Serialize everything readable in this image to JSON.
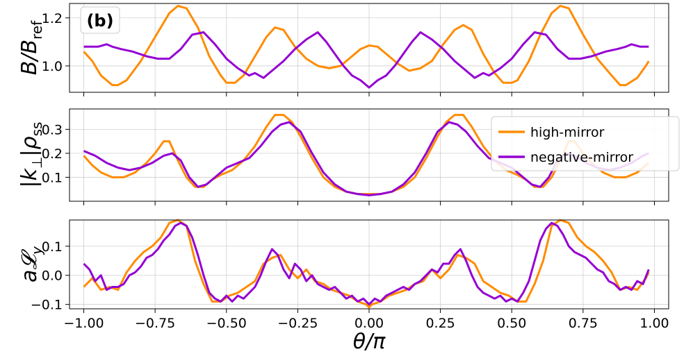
{
  "colors": {
    "high_mirror": "#ff8c00",
    "negative_mirror": "#9400d3"
  },
  "panel_tag": "(b)",
  "xlabel": "θ/π",
  "chart_data": [
    {
      "type": "line",
      "ylabel_main": "B/B",
      "ylabel_sub": "ref",
      "xlim": [
        -1.05,
        1.05
      ],
      "ylim": [
        0.89,
        1.26
      ],
      "xticks": [
        -1.0,
        -0.75,
        -0.5,
        -0.25,
        0.0,
        0.25,
        0.5,
        0.75,
        1.0
      ],
      "yticks": [
        1.0,
        1.2
      ],
      "ytick_labels": [
        "1.0",
        "1.2"
      ],
      "grid": true,
      "series": [
        {
          "name": "high-mirror",
          "color_key": "high_mirror",
          "x": [
            -1.0,
            -0.97,
            -0.94,
            -0.9,
            -0.88,
            -0.85,
            -0.8,
            -0.75,
            -0.7,
            -0.67,
            -0.64,
            -0.6,
            -0.56,
            -0.52,
            -0.5,
            -0.47,
            -0.44,
            -0.4,
            -0.36,
            -0.33,
            -0.3,
            -0.26,
            -0.22,
            -0.18,
            -0.14,
            -0.1,
            -0.06,
            -0.03,
            0.0,
            0.03,
            0.06,
            0.1,
            0.14,
            0.18,
            0.22,
            0.26,
            0.3,
            0.33,
            0.36,
            0.4,
            0.44,
            0.47,
            0.5,
            0.52,
            0.56,
            0.6,
            0.64,
            0.67,
            0.7,
            0.75,
            0.8,
            0.85,
            0.88,
            0.9,
            0.94,
            0.97,
            0.98
          ],
          "y": [
            1.06,
            1.02,
            0.96,
            0.92,
            0.92,
            0.94,
            1.02,
            1.12,
            1.22,
            1.25,
            1.24,
            1.16,
            1.04,
            0.96,
            0.93,
            0.93,
            0.96,
            1.04,
            1.12,
            1.16,
            1.15,
            1.08,
            1.03,
            1.0,
            0.99,
            1.0,
            1.04,
            1.07,
            1.085,
            1.08,
            1.05,
            1.01,
            0.98,
            0.99,
            1.02,
            1.09,
            1.15,
            1.17,
            1.15,
            1.05,
            0.97,
            0.93,
            0.93,
            0.94,
            1.02,
            1.13,
            1.22,
            1.25,
            1.24,
            1.13,
            1.03,
            0.96,
            0.92,
            0.92,
            0.95,
            1.0,
            1.02
          ]
        },
        {
          "name": "negative-mirror",
          "color_key": "negative_mirror",
          "x": [
            -1.0,
            -0.95,
            -0.92,
            -0.9,
            -0.87,
            -0.83,
            -0.78,
            -0.74,
            -0.7,
            -0.66,
            -0.62,
            -0.58,
            -0.54,
            -0.5,
            -0.46,
            -0.42,
            -0.4,
            -0.37,
            -0.34,
            -0.3,
            -0.26,
            -0.22,
            -0.18,
            -0.15,
            -0.12,
            -0.09,
            -0.06,
            -0.03,
            -0.01,
            0.0,
            0.01,
            0.03,
            0.06,
            0.09,
            0.12,
            0.15,
            0.18,
            0.22,
            0.26,
            0.3,
            0.34,
            0.37,
            0.4,
            0.42,
            0.46,
            0.5,
            0.54,
            0.58,
            0.62,
            0.66,
            0.7,
            0.74,
            0.78,
            0.83,
            0.87,
            0.9,
            0.92,
            0.95,
            0.98
          ],
          "y": [
            1.08,
            1.08,
            1.09,
            1.08,
            1.07,
            1.06,
            1.04,
            1.03,
            1.03,
            1.07,
            1.13,
            1.14,
            1.09,
            1.03,
            0.99,
            0.96,
            0.97,
            0.95,
            0.98,
            1.02,
            1.07,
            1.11,
            1.14,
            1.1,
            1.05,
            1.0,
            0.96,
            0.94,
            0.92,
            0.91,
            0.92,
            0.94,
            0.96,
            1.0,
            1.05,
            1.1,
            1.14,
            1.11,
            1.07,
            1.02,
            0.98,
            0.95,
            0.97,
            0.96,
            0.99,
            1.03,
            1.09,
            1.14,
            1.13,
            1.07,
            1.03,
            1.03,
            1.04,
            1.06,
            1.07,
            1.08,
            1.09,
            1.08,
            1.08
          ]
        }
      ]
    },
    {
      "type": "line",
      "ylabel_main": "|k",
      "ylabel_sub": "⊥",
      "ylabel_mid": "|ρ",
      "ylabel_sub2": "ss",
      "xlim": [
        -1.05,
        1.05
      ],
      "ylim": [
        0.0,
        0.385
      ],
      "xticks": [
        -1.0,
        -0.75,
        -0.5,
        -0.25,
        0.0,
        0.25,
        0.5,
        0.75,
        1.0
      ],
      "yticks": [
        0.1,
        0.2,
        0.3
      ],
      "ytick_labels": [
        "0.1",
        "0.2",
        "0.3"
      ],
      "grid": true,
      "legend": {
        "position": "top-right",
        "entries": [
          "high-mirror",
          "negative-mirror"
        ]
      },
      "series": [
        {
          "name": "high-mirror",
          "color_key": "high_mirror",
          "x": [
            -1.0,
            -0.97,
            -0.94,
            -0.9,
            -0.86,
            -0.82,
            -0.78,
            -0.75,
            -0.72,
            -0.7,
            -0.67,
            -0.64,
            -0.61,
            -0.58,
            -0.55,
            -0.52,
            -0.48,
            -0.44,
            -0.4,
            -0.36,
            -0.33,
            -0.3,
            -0.27,
            -0.24,
            -0.2,
            -0.16,
            -0.12,
            -0.08,
            -0.04,
            0.0,
            0.04,
            0.08,
            0.12,
            0.16,
            0.2,
            0.24,
            0.27,
            0.3,
            0.33,
            0.36,
            0.4,
            0.44,
            0.48,
            0.52,
            0.55,
            0.58,
            0.61,
            0.64,
            0.67,
            0.7,
            0.72,
            0.75,
            0.78,
            0.82,
            0.86,
            0.9,
            0.94,
            0.97,
            0.98
          ],
          "y": [
            0.19,
            0.15,
            0.12,
            0.1,
            0.1,
            0.12,
            0.16,
            0.2,
            0.25,
            0.25,
            0.17,
            0.1,
            0.06,
            0.06,
            0.09,
            0.11,
            0.13,
            0.17,
            0.23,
            0.31,
            0.36,
            0.36,
            0.33,
            0.27,
            0.18,
            0.1,
            0.06,
            0.04,
            0.03,
            0.03,
            0.03,
            0.04,
            0.06,
            0.1,
            0.18,
            0.27,
            0.33,
            0.36,
            0.36,
            0.31,
            0.23,
            0.17,
            0.13,
            0.11,
            0.09,
            0.06,
            0.06,
            0.1,
            0.17,
            0.25,
            0.25,
            0.2,
            0.16,
            0.12,
            0.1,
            0.1,
            0.12,
            0.15,
            0.16
          ]
        },
        {
          "name": "negative-mirror",
          "color_key": "negative_mirror",
          "x": [
            -1.0,
            -0.96,
            -0.92,
            -0.88,
            -0.84,
            -0.8,
            -0.76,
            -0.72,
            -0.69,
            -0.66,
            -0.63,
            -0.6,
            -0.57,
            -0.54,
            -0.5,
            -0.46,
            -0.42,
            -0.38,
            -0.34,
            -0.31,
            -0.28,
            -0.24,
            -0.2,
            -0.16,
            -0.12,
            -0.08,
            -0.04,
            0.0,
            0.04,
            0.08,
            0.12,
            0.16,
            0.2,
            0.24,
            0.28,
            0.31,
            0.34,
            0.38,
            0.42,
            0.46,
            0.5,
            0.54,
            0.57,
            0.6,
            0.63,
            0.66,
            0.69,
            0.72,
            0.76,
            0.8,
            0.84,
            0.88,
            0.92,
            0.96,
            0.98
          ],
          "y": [
            0.21,
            0.19,
            0.16,
            0.14,
            0.13,
            0.14,
            0.16,
            0.19,
            0.2,
            0.17,
            0.1,
            0.06,
            0.07,
            0.1,
            0.14,
            0.16,
            0.18,
            0.23,
            0.29,
            0.32,
            0.33,
            0.29,
            0.2,
            0.12,
            0.07,
            0.04,
            0.03,
            0.025,
            0.03,
            0.04,
            0.07,
            0.12,
            0.2,
            0.29,
            0.33,
            0.32,
            0.29,
            0.23,
            0.18,
            0.16,
            0.14,
            0.1,
            0.07,
            0.06,
            0.1,
            0.17,
            0.2,
            0.19,
            0.16,
            0.14,
            0.13,
            0.14,
            0.16,
            0.19,
            0.2
          ]
        }
      ]
    },
    {
      "type": "line",
      "ylabel_main": "a𝓛",
      "ylabel_sub": "y",
      "xlim": [
        -1.05,
        1.05
      ],
      "ylim": [
        -0.115,
        0.19
      ],
      "xticks": [
        -1.0,
        -0.75,
        -0.5,
        -0.25,
        0.0,
        0.25,
        0.5,
        0.75,
        1.0
      ],
      "xtick_labels": [
        "−1.00",
        "−0.75",
        "−0.50",
        "−0.25",
        "0.00",
        "0.25",
        "0.50",
        "0.75",
        "1.00"
      ],
      "yticks": [
        -0.1,
        0.0,
        0.1
      ],
      "ytick_labels": [
        "−0.1",
        "0.0",
        "0.1"
      ],
      "grid": true,
      "series": [
        {
          "name": "high-mirror",
          "color_key": "high_mirror",
          "x": [
            -1.0,
            -0.97,
            -0.94,
            -0.91,
            -0.88,
            -0.85,
            -0.82,
            -0.79,
            -0.76,
            -0.73,
            -0.7,
            -0.67,
            -0.64,
            -0.61,
            -0.58,
            -0.55,
            -0.52,
            -0.49,
            -0.46,
            -0.43,
            -0.4,
            -0.37,
            -0.34,
            -0.31,
            -0.28,
            -0.25,
            -0.22,
            -0.19,
            -0.16,
            -0.13,
            -0.1,
            -0.07,
            -0.04,
            -0.01,
            0.0,
            0.01,
            0.04,
            0.07,
            0.1,
            0.13,
            0.16,
            0.19,
            0.22,
            0.25,
            0.28,
            0.31,
            0.34,
            0.37,
            0.4,
            0.43,
            0.46,
            0.49,
            0.52,
            0.55,
            0.58,
            0.61,
            0.64,
            0.67,
            0.7,
            0.73,
            0.76,
            0.79,
            0.82,
            0.85,
            0.88,
            0.91,
            0.94,
            0.97,
            0.98
          ],
          "y": [
            -0.04,
            -0.01,
            -0.05,
            -0.04,
            -0.05,
            0.01,
            0.05,
            0.08,
            0.1,
            0.13,
            0.18,
            0.19,
            0.17,
            0.05,
            -0.03,
            -0.09,
            -0.09,
            -0.07,
            -0.06,
            -0.04,
            -0.02,
            0.04,
            0.06,
            0.07,
            0.02,
            -0.01,
            0.02,
            -0.02,
            -0.03,
            -0.05,
            -0.06,
            -0.07,
            -0.09,
            -0.1,
            -0.11,
            -0.1,
            -0.09,
            -0.07,
            -0.06,
            -0.05,
            -0.03,
            -0.02,
            0.02,
            -0.01,
            0.02,
            0.07,
            0.06,
            0.04,
            -0.02,
            -0.04,
            -0.06,
            -0.07,
            -0.09,
            -0.09,
            -0.03,
            0.05,
            0.17,
            0.19,
            0.18,
            0.13,
            0.1,
            0.08,
            0.05,
            0.01,
            -0.05,
            -0.04,
            -0.05,
            -0.01,
            0.01
          ]
        },
        {
          "name": "negative-mirror",
          "color_key": "negative_mirror",
          "x": [
            -1.0,
            -0.98,
            -0.96,
            -0.94,
            -0.92,
            -0.9,
            -0.88,
            -0.86,
            -0.84,
            -0.82,
            -0.8,
            -0.78,
            -0.76,
            -0.74,
            -0.72,
            -0.7,
            -0.68,
            -0.66,
            -0.64,
            -0.62,
            -0.6,
            -0.58,
            -0.56,
            -0.54,
            -0.52,
            -0.5,
            -0.48,
            -0.46,
            -0.44,
            -0.42,
            -0.4,
            -0.38,
            -0.36,
            -0.34,
            -0.32,
            -0.3,
            -0.28,
            -0.26,
            -0.24,
            -0.22,
            -0.2,
            -0.18,
            -0.16,
            -0.14,
            -0.12,
            -0.1,
            -0.08,
            -0.06,
            -0.04,
            -0.02,
            0.0,
            0.02,
            0.04,
            0.06,
            0.08,
            0.1,
            0.12,
            0.14,
            0.16,
            0.18,
            0.2,
            0.22,
            0.24,
            0.26,
            0.28,
            0.3,
            0.32,
            0.34,
            0.36,
            0.38,
            0.4,
            0.42,
            0.44,
            0.46,
            0.48,
            0.5,
            0.52,
            0.54,
            0.56,
            0.58,
            0.6,
            0.62,
            0.64,
            0.66,
            0.68,
            0.7,
            0.72,
            0.74,
            0.76,
            0.78,
            0.8,
            0.82,
            0.84,
            0.86,
            0.88,
            0.9,
            0.92,
            0.94,
            0.96,
            0.98
          ],
          "y": [
            0.04,
            0.02,
            -0.02,
            0.0,
            -0.05,
            -0.04,
            -0.04,
            -0.03,
            0.0,
            0.01,
            0.03,
            0.06,
            0.07,
            0.09,
            0.12,
            0.14,
            0.17,
            0.18,
            0.17,
            0.13,
            0.07,
            0.0,
            -0.06,
            -0.08,
            -0.09,
            -0.07,
            -0.09,
            -0.07,
            -0.08,
            -0.06,
            -0.04,
            0.0,
            0.05,
            0.09,
            0.07,
            0.02,
            -0.01,
            0.04,
            0.02,
            -0.02,
            0.0,
            -0.03,
            -0.04,
            -0.05,
            -0.04,
            -0.06,
            -0.08,
            -0.07,
            -0.09,
            -0.08,
            -0.1,
            -0.08,
            -0.09,
            -0.07,
            -0.06,
            -0.05,
            -0.04,
            -0.05,
            -0.03,
            -0.02,
            0.0,
            0.02,
            0.01,
            0.04,
            0.04,
            0.07,
            0.09,
            0.05,
            0.0,
            -0.04,
            -0.06,
            -0.07,
            -0.08,
            -0.07,
            -0.09,
            -0.08,
            -0.09,
            -0.06,
            -0.02,
            0.05,
            0.12,
            0.16,
            0.18,
            0.17,
            0.14,
            0.1,
            0.08,
            0.07,
            0.06,
            0.04,
            0.02,
            0.01,
            -0.02,
            -0.03,
            -0.05,
            -0.04,
            -0.05,
            -0.02,
            -0.03,
            0.02
          ]
        }
      ]
    }
  ]
}
